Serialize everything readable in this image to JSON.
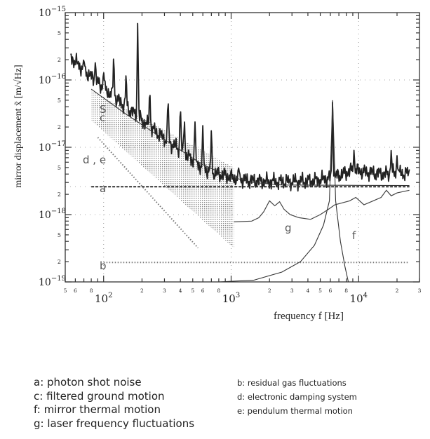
{
  "chart_data": {
    "type": "line",
    "xscale": "log",
    "yscale": "log",
    "xlim": [
      50,
      30000
    ],
    "ylim": [
      1e-19,
      1e-15
    ],
    "xlabel": "frequency  f  [Hz]",
    "ylabel": "mirror displacement  x̃  [m/√Hz]",
    "x_major_ticks": [
      {
        "value": 100,
        "label": "10",
        "exp": "2"
      },
      {
        "value": 1000,
        "label": "10",
        "exp": "3"
      },
      {
        "value": 10000,
        "label": "10",
        "exp": "4"
      }
    ],
    "y_major_ticks": [
      {
        "value": 1e-19,
        "label": "10",
        "exp": "−19"
      },
      {
        "value": 1e-18,
        "label": "10",
        "exp": "−18"
      },
      {
        "value": 1e-17,
        "label": "10",
        "exp": "−17"
      },
      {
        "value": 1e-16,
        "label": "10",
        "exp": "−16"
      },
      {
        "value": 1e-15,
        "label": "10",
        "exp": "−15"
      }
    ],
    "x_minor_labels": [
      {
        "value": 50,
        "label": "5"
      },
      {
        "value": 60,
        "label": "6"
      },
      {
        "value": 80,
        "label": "8"
      },
      {
        "value": 200,
        "label": "2"
      },
      {
        "value": 300,
        "label": "3"
      },
      {
        "value": 400,
        "label": "4"
      },
      {
        "value": 500,
        "label": "5"
      },
      {
        "value": 600,
        "label": "6"
      },
      {
        "value": 800,
        "label": "8"
      },
      {
        "value": 2000,
        "label": "2"
      },
      {
        "value": 3000,
        "label": "3"
      },
      {
        "value": 4000,
        "label": "4"
      },
      {
        "value": 5000,
        "label": "5"
      },
      {
        "value": 6000,
        "label": "6"
      },
      {
        "value": 8000,
        "label": "8"
      },
      {
        "value": 20000,
        "label": "2"
      },
      {
        "value": 30000,
        "label": "3"
      }
    ],
    "y_minor_labels": [
      {
        "value": 5e-16,
        "label": "5"
      },
      {
        "value": 2e-16,
        "label": "2"
      },
      {
        "value": 5e-17,
        "label": "5"
      },
      {
        "value": 2e-17,
        "label": "2"
      },
      {
        "value": 5e-18,
        "label": "5"
      },
      {
        "value": 2e-18,
        "label": "2"
      },
      {
        "value": 5e-19,
        "label": "5"
      },
      {
        "value": 2e-19,
        "label": "2"
      }
    ],
    "grid": "dotted",
    "series": [
      {
        "name": "S",
        "label": "S",
        "style": "noisy-solid",
        "x": [
          55,
          70,
          90,
          110,
          140,
          180,
          230,
          300,
          400,
          550,
          700,
          900,
          1100,
          1400,
          2000,
          3000,
          4500,
          5500,
          6300,
          7500,
          9000,
          12000,
          16000,
          20000,
          25000
        ],
        "y": [
          2.2e-16,
          1.4e-16,
          9e-17,
          6.5e-17,
          4.4e-17,
          3e-17,
          2e-17,
          1.35e-17,
          9e-18,
          5.5e-18,
          4.2e-18,
          3.8e-18,
          3.4e-18,
          3.2e-18,
          3.1e-18,
          3.1e-18,
          3.2e-18,
          3.4e-18,
          3.6e-18,
          4e-18,
          4.6e-18,
          4.2e-18,
          4e-18,
          4.1e-18,
          4.1e-18
        ],
        "peaks": [
          {
            "x": 70,
            "y": 2e-16
          },
          {
            "x": 86,
            "y": 1.8e-16
          },
          {
            "x": 100,
            "y": 1.3e-16
          },
          {
            "x": 120,
            "y": 2.2e-16
          },
          {
            "x": 150,
            "y": 1.2e-16
          },
          {
            "x": 185,
            "y": 7e-16
          },
          {
            "x": 230,
            "y": 7e-17
          },
          {
            "x": 320,
            "y": 5e-17
          },
          {
            "x": 400,
            "y": 4e-17
          },
          {
            "x": 430,
            "y": 2.5e-17
          },
          {
            "x": 520,
            "y": 2.4e-17
          },
          {
            "x": 600,
            "y": 2.1e-17
          },
          {
            "x": 700,
            "y": 1.8e-17
          },
          {
            "x": 1150,
            "y": 5e-18
          },
          {
            "x": 6250,
            "y": 5e-17
          },
          {
            "x": 9200,
            "y": 9e-18
          },
          {
            "x": 18000,
            "y": 9e-18
          },
          {
            "x": 20000,
            "y": 7.5e-18
          }
        ]
      },
      {
        "name": "c",
        "label": "c",
        "style": "solid",
        "x": [
          80,
          150,
          300,
          600,
          1000,
          1500,
          2500,
          25000
        ],
        "y": [
          7.3e-17,
          3.1e-17,
          1.3e-17,
          5.5e-18,
          3.6e-18,
          3e-18,
          2.75e-18,
          2.7e-18
        ]
      },
      {
        "name": "c band",
        "style": "stippled-band",
        "x_start": 80,
        "x_end": 1050,
        "upper": [
          7e-17,
          5e-18
        ],
        "lower": [
          2.5e-17,
          3.2e-19
        ]
      },
      {
        "name": "a",
        "label": "a",
        "style": "dashed",
        "x": [
          80,
          25000
        ],
        "y": [
          2.6e-18,
          2.6e-18
        ]
      },
      {
        "name": "d, e",
        "label": "d, e",
        "style": "dotted",
        "x": [
          90,
          550
        ],
        "y": [
          1.4e-17,
          3.2e-19
        ]
      },
      {
        "name": "b",
        "label": "b",
        "style": "dotted",
        "x": [
          100,
          25000
        ],
        "y": [
          1.95e-19,
          1.95e-19
        ]
      },
      {
        "name": "g",
        "label": "g",
        "style": "thin",
        "x": [
          1050,
          1450,
          1650,
          1800,
          2000,
          2200,
          2400,
          2600,
          2900,
          3400,
          4200,
          5000,
          5800,
          6500,
          7500,
          8500,
          9500,
          11000,
          13000,
          15000,
          16500,
          18000,
          20000,
          25000
        ],
        "y": [
          7.8e-19,
          8e-19,
          9e-19,
          1.1e-18,
          1.6e-18,
          1.35e-18,
          1.55e-18,
          1.2e-18,
          1e-18,
          9e-19,
          8.5e-19,
          1e-18,
          1.2e-18,
          1.4e-18,
          1.5e-18,
          1.6e-18,
          1.8e-18,
          1.4e-18,
          1.6e-18,
          1.8e-18,
          2.3e-18,
          1.9e-18,
          2.1e-18,
          2.3e-18
        ]
      },
      {
        "name": "f",
        "label": "f",
        "style": "solid",
        "x": [
          800,
          1500,
          2500,
          3500,
          4500,
          5300,
          5900,
          6250,
          6600,
          7200,
          7800,
          8300
        ],
        "y": [
          1e-19,
          1.06e-19,
          1.4e-19,
          2e-19,
          3.5e-19,
          7e-19,
          1.6e-18,
          5e-17,
          1.6e-18,
          4e-19,
          1.7e-19,
          1e-19
        ]
      }
    ]
  },
  "curve_labels": {
    "S": "S",
    "c": "c",
    "de": "d , e",
    "a": "a",
    "b": "b",
    "g": "g",
    "f": "f"
  },
  "legend": {
    "left": [
      "a:  photon shot noise",
      "c:  filtered ground motion",
      "f:  mirror thermal motion",
      "g:  laser frequency fluctuations"
    ],
    "right": [
      "b:   residual gas fluctuations",
      "d:   electronic damping system",
      "e:   pendulum thermal motion"
    ]
  }
}
